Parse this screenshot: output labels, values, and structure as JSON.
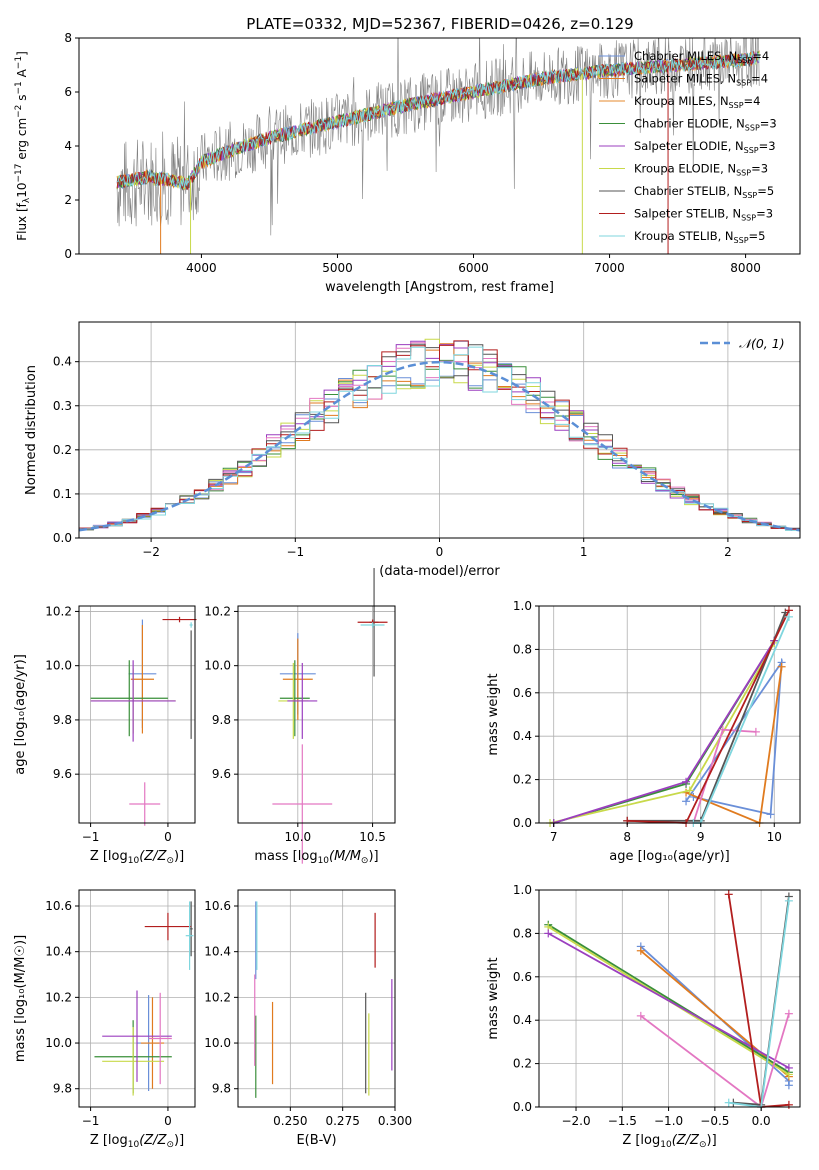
{
  "title": "PLATE=0332, MJD=52367, FIBERID=0426, z=0.129",
  "colors": {
    "chabrier_miles": "#6a8fd8",
    "salpeter_miles": "#e07b1f",
    "kroupa_miles": "#e58a2d",
    "chabrier_elodie": "#3a8f3a",
    "salpeter_elodie": "#9b3fbf",
    "kroupa_elodie": "#c8d94a",
    "chabrier_stelib": "#555555",
    "salpeter_stelib": "#b21e1e",
    "kroupa_stelib": "#7fd6de",
    "pink": "#e377c2",
    "data": "#808080",
    "normal_curve": "#5b8fd6"
  },
  "chart_data": [
    {
      "type": "line",
      "name": "spectrum",
      "xlabel": "wavelength [Angstrom, rest frame]",
      "ylabel_parts": {
        "a": "Flux [f",
        "b": "λ",
        "c": "10",
        "d": "−17",
        "e": " erg cm",
        "f": "−2",
        "g": " s",
        "h": "−1",
        "i": " A",
        "j": "−1",
        "k": "]"
      },
      "xlim": [
        3100,
        8400
      ],
      "ylim": [
        0,
        8
      ],
      "xticks": [
        4000,
        5000,
        6000,
        7000,
        8000
      ],
      "yticks": [
        0,
        2,
        4,
        6,
        8
      ],
      "legend_position": "right",
      "legend": [
        {
          "main": "Chabrier MILES, N",
          "sub": "SSP",
          "tail": "=4",
          "color_key": "chabrier_miles"
        },
        {
          "main": "Salpeter MILES, N",
          "sub": "SSP",
          "tail": "=4",
          "color_key": "salpeter_miles"
        },
        {
          "main": "Kroupa MILES, N",
          "sub": "SSP",
          "tail": "=4",
          "color_key": "kroupa_miles"
        },
        {
          "main": "Chabrier ELODIE, N",
          "sub": "SSP",
          "tail": "=3",
          "color_key": "chabrier_elodie"
        },
        {
          "main": "Salpeter ELODIE, N",
          "sub": "SSP",
          "tail": "=3",
          "color_key": "salpeter_elodie"
        },
        {
          "main": "Kroupa ELODIE, N",
          "sub": "SSP",
          "tail": "=3",
          "color_key": "kroupa_elodie"
        },
        {
          "main": "Chabrier STELIB, N",
          "sub": "SSP",
          "tail": "=5",
          "color_key": "chabrier_stelib"
        },
        {
          "main": "Salpeter STELIB, N",
          "sub": "SSP",
          "tail": "=3",
          "color_key": "salpeter_stelib"
        },
        {
          "main": "Kroupa STELIB, N",
          "sub": "SSP",
          "tail": "=5",
          "color_key": "kroupa_stelib"
        }
      ],
      "continuum": {
        "x": [
          3380,
          3500,
          3700,
          3900,
          4000,
          4200,
          4500,
          5000,
          5500,
          6000,
          6500,
          7000,
          7500,
          8000,
          8100
        ],
        "y": [
          2.5,
          2.6,
          2.8,
          2.6,
          3.4,
          3.8,
          4.3,
          4.9,
          5.5,
          6.0,
          6.5,
          6.8,
          7.0,
          7.2,
          7.3
        ]
      }
    },
    {
      "type": "bar",
      "name": "residual_histogram",
      "xlabel": "(data-model)/error",
      "ylabel": "Normed distribution",
      "xlim": [
        -2.5,
        2.5
      ],
      "ylim": [
        0,
        0.49
      ],
      "xticks": [
        -2,
        -1,
        0,
        1,
        2
      ],
      "yticks": [
        0.0,
        0.1,
        0.2,
        0.3,
        0.4
      ],
      "ytick_labels": [
        "0.0",
        "0.1",
        "0.2",
        "0.3",
        "0.4"
      ],
      "xtick_labels": [
        "−2",
        "−1",
        "0",
        "1",
        "2"
      ],
      "legend_label": "𝒩(0, 1)",
      "legend_position": "top-right",
      "bin_width": 0.1
    },
    {
      "type": "scatter",
      "name": "age_vs_Z",
      "xlabel_main": "Z [log",
      "xlabel_sub": "10",
      "xlabel_rest": "(Z/Z",
      "xlabel_sun": "⊙",
      "xlabel_end": ")]",
      "ylabel": "age  [log₁₀(age/yr)]",
      "xlim": [
        -1.15,
        0.35
      ],
      "ylim": [
        9.42,
        10.22
      ],
      "xticks": [
        -1,
        0
      ],
      "xtick_labels": [
        "−1",
        "0"
      ],
      "yticks": [
        9.6,
        9.8,
        10.0,
        10.2
      ],
      "ytick_labels": [
        "9.6",
        "9.8",
        "10.0",
        "10.2"
      ],
      "points": [
        {
          "x": -0.33,
          "y": 9.97,
          "xerr": 0.18,
          "yerr": 0.2,
          "c": "chabrier_miles"
        },
        {
          "x": -0.33,
          "y": 9.95,
          "xerr": 0.15,
          "yerr": 0.2,
          "c": "salpeter_miles"
        },
        {
          "x": -0.5,
          "y": 9.88,
          "xerr": 0.5,
          "yerr": 0.14,
          "c": "chabrier_elodie"
        },
        {
          "x": -0.45,
          "y": 9.87,
          "xerr": 0.55,
          "yerr": 0.12,
          "c": "kroupa_elodie"
        },
        {
          "x": -0.45,
          "y": 9.87,
          "xerr": 0.55,
          "yerr": 0.15,
          "c": "salpeter_elodie"
        },
        {
          "x": -0.3,
          "y": 9.49,
          "xerr": 0.2,
          "yerr": 0.08,
          "c": "pink"
        },
        {
          "x": 0.3,
          "y": 9.93,
          "xerr": 0.0,
          "yerr": 0.2,
          "c": "chabrier_stelib"
        },
        {
          "x": 0.15,
          "y": 10.17,
          "xerr": 0.22,
          "yerr": 0.01,
          "c": "salpeter_stelib"
        },
        {
          "x": 0.3,
          "y": 10.15,
          "xerr": 0.02,
          "yerr": 0.01,
          "c": "kroupa_stelib"
        }
      ]
    },
    {
      "type": "scatter",
      "name": "age_vs_mass",
      "xlabel_main": "mass [log",
      "xlabel_sub": "10",
      "xlabel_rest": "(M/M",
      "xlabel_sun": "⊙",
      "xlabel_end": ")]",
      "xlim": [
        9.6,
        10.65
      ],
      "ylim": [
        9.42,
        10.22
      ],
      "xticks": [
        10.0,
        10.5
      ],
      "xtick_labels": [
        "10.0",
        "10.5"
      ],
      "yticks": [
        9.6,
        9.8,
        10.0,
        10.2
      ],
      "ytick_labels": [
        "9.6",
        "9.8",
        "10.0",
        "10.2"
      ],
      "points": [
        {
          "x": 10.0,
          "y": 9.97,
          "xerr": 0.12,
          "yerr": 0.15,
          "c": "chabrier_miles"
        },
        {
          "x": 10.0,
          "y": 9.95,
          "xerr": 0.1,
          "yerr": 0.15,
          "c": "salpeter_miles"
        },
        {
          "x": 9.98,
          "y": 9.88,
          "xerr": 0.1,
          "yerr": 0.14,
          "c": "chabrier_elodie"
        },
        {
          "x": 9.97,
          "y": 9.87,
          "xerr": 0.1,
          "yerr": 0.14,
          "c": "kroupa_elodie"
        },
        {
          "x": 10.03,
          "y": 9.87,
          "xerr": 0.1,
          "yerr": 0.14,
          "c": "salpeter_elodie"
        },
        {
          "x": 10.03,
          "y": 9.49,
          "xerr": 0.2,
          "yerr": 0.22,
          "c": "pink"
        },
        {
          "x": 10.51,
          "y": 10.16,
          "xerr": 0.03,
          "yerr": 0.2,
          "c": "chabrier_stelib"
        },
        {
          "x": 10.5,
          "y": 10.16,
          "xerr": 0.1,
          "yerr": 0.01,
          "c": "salpeter_stelib"
        },
        {
          "x": 10.5,
          "y": 10.15,
          "xerr": 0.08,
          "yerr": 0.01,
          "c": "kroupa_stelib"
        }
      ]
    },
    {
      "type": "line",
      "name": "mass_weight_vs_age",
      "xlabel": "age  [log₁₀(age/yr)]",
      "ylabel": "mass weight",
      "xlim": [
        6.8,
        10.35
      ],
      "ylim": [
        0,
        1
      ],
      "xticks": [
        7,
        8,
        9,
        10
      ],
      "xtick_labels": [
        "7",
        "8",
        "9",
        "10"
      ],
      "yticks": [
        0.0,
        0.2,
        0.4,
        0.6,
        0.8,
        1.0
      ],
      "ytick_labels": [
        "0.0",
        "0.2",
        "0.4",
        "0.6",
        "0.8",
        "1.0"
      ],
      "series": [
        {
          "c": "chabrier_miles",
          "x": [
            8.9,
            9.95,
            10.1,
            8.8
          ],
          "y": [
            0.12,
            0.04,
            0.74,
            0.1
          ]
        },
        {
          "c": "salpeter_miles",
          "x": [
            8.8,
            9.8,
            10.1
          ],
          "y": [
            0.14,
            0.0,
            0.72
          ]
        },
        {
          "c": "chabrier_elodie",
          "x": [
            7.0,
            8.8,
            10.0
          ],
          "y": [
            0.0,
            0.18,
            0.84
          ]
        },
        {
          "c": "kroupa_elodie",
          "x": [
            6.95,
            8.85,
            10.0
          ],
          "y": [
            0.0,
            0.15,
            0.83
          ]
        },
        {
          "c": "salpeter_elodie",
          "x": [
            7.0,
            8.8,
            10.0
          ],
          "y": [
            0.0,
            0.19,
            0.84
          ]
        },
        {
          "c": "pink",
          "x": [
            8.9,
            9.3,
            9.75
          ],
          "y": [
            0.0,
            0.43,
            0.42
          ]
        },
        {
          "c": "chabrier_stelib",
          "x": [
            8.0,
            9.0,
            10.15
          ],
          "y": [
            0.01,
            0.01,
            0.97
          ]
        },
        {
          "c": "salpeter_stelib",
          "x": [
            8.0,
            8.8,
            10.2
          ],
          "y": [
            0.01,
            0.0,
            0.98
          ]
        },
        {
          "c": "kroupa_stelib",
          "x": [
            8.9,
            9.0,
            10.2
          ],
          "y": [
            0.0,
            0.0,
            0.95
          ]
        }
      ]
    },
    {
      "type": "scatter",
      "name": "mass_vs_Z",
      "xlabel_main": "Z [log",
      "xlabel_sub": "10",
      "xlabel_rest": "(Z/Z",
      "xlabel_sun": "⊙",
      "xlabel_end": ")]",
      "ylabel": "mass [log₁₀(M/M☉)]",
      "xlim": [
        -1.15,
        0.35
      ],
      "ylim": [
        9.72,
        10.67
      ],
      "xticks": [
        -1,
        0
      ],
      "xtick_labels": [
        "−1",
        "0"
      ],
      "yticks": [
        9.8,
        10.0,
        10.2,
        10.4,
        10.6
      ],
      "ytick_labels": [
        "9.8",
        "10.0",
        "10.2",
        "10.4",
        "10.6"
      ],
      "points": [
        {
          "x": -0.25,
          "y": 10.0,
          "xerr": 0.15,
          "yerr": 0.21,
          "c": "chabrier_miles"
        },
        {
          "x": -0.2,
          "y": 10.0,
          "xerr": 0.15,
          "yerr": 0.2,
          "c": "salpeter_miles"
        },
        {
          "x": -0.45,
          "y": 9.94,
          "xerr": 0.5,
          "yerr": 0.16,
          "c": "chabrier_elodie"
        },
        {
          "x": -0.45,
          "y": 9.92,
          "xerr": 0.4,
          "yerr": 0.15,
          "c": "kroupa_elodie"
        },
        {
          "x": -0.4,
          "y": 10.03,
          "xerr": 0.45,
          "yerr": 0.2,
          "c": "salpeter_elodie"
        },
        {
          "x": -0.1,
          "y": 10.02,
          "xerr": 0.15,
          "yerr": 0.2,
          "c": "pink"
        },
        {
          "x": 0.3,
          "y": 10.5,
          "xerr": 0.02,
          "yerr": 0.12,
          "c": "chabrier_stelib"
        },
        {
          "x": 0.0,
          "y": 10.51,
          "xerr": 0.3,
          "yerr": 0.06,
          "c": "salpeter_stelib"
        },
        {
          "x": 0.28,
          "y": 10.47,
          "xerr": 0.05,
          "yerr": 0.15,
          "c": "kroupa_stelib"
        }
      ]
    },
    {
      "type": "scatter",
      "name": "mass_vs_ebv",
      "xlabel": "E(B-V)",
      "xlim": [
        0.225,
        0.3
      ],
      "ylim": [
        9.72,
        10.67
      ],
      "xticks": [
        0.25,
        0.275,
        0.3
      ],
      "xtick_labels": [
        "0.250",
        "0.275",
        "0.300"
      ],
      "yticks": [
        9.8,
        10.0,
        10.2,
        10.4,
        10.6
      ],
      "ytick_labels": [
        "9.8",
        "10.0",
        "10.2",
        "10.4",
        "10.6"
      ],
      "points": [
        {
          "x": 0.2335,
          "y": 10.45,
          "yerr": 0.17,
          "c": "chabrier_miles"
        },
        {
          "x": 0.2415,
          "y": 10.0,
          "yerr": 0.18,
          "c": "salpeter_miles"
        },
        {
          "x": 0.2335,
          "y": 9.94,
          "yerr": 0.18,
          "c": "chabrier_elodie"
        },
        {
          "x": 0.2875,
          "y": 9.95,
          "yerr": 0.18,
          "c": "kroupa_elodie"
        },
        {
          "x": 0.2985,
          "y": 10.08,
          "yerr": 0.2,
          "c": "salpeter_elodie"
        },
        {
          "x": 0.233,
          "y": 10.1,
          "yerr": 0.2,
          "c": "pink"
        },
        {
          "x": 0.286,
          "y": 10.0,
          "yerr": 0.22,
          "c": "chabrier_stelib"
        },
        {
          "x": 0.2905,
          "y": 10.45,
          "yerr": 0.12,
          "c": "salpeter_stelib"
        },
        {
          "x": 0.234,
          "y": 10.47,
          "yerr": 0.15,
          "c": "kroupa_stelib"
        }
      ]
    },
    {
      "type": "line",
      "name": "mass_weight_vs_Z",
      "xlabel_main": "Z [log",
      "xlabel_sub": "10",
      "xlabel_rest": "(Z/Z",
      "xlabel_sun": "⊙",
      "xlabel_end": ")]",
      "ylabel": "mass weight",
      "xlim": [
        -2.4,
        0.42
      ],
      "ylim": [
        0,
        1
      ],
      "xticks": [
        -2.0,
        -1.5,
        -1.0,
        -0.5,
        0.0
      ],
      "xtick_labels": [
        "−2.0",
        "−1.5",
        "−1.0",
        "−0.5",
        "0.0"
      ],
      "yticks": [
        0.0,
        0.2,
        0.4,
        0.6,
        0.8,
        1.0
      ],
      "ytick_labels": [
        "0.0",
        "0.2",
        "0.4",
        "0.6",
        "0.8",
        "1.0"
      ],
      "series": [
        {
          "c": "chabrier_miles",
          "x": [
            -1.3,
            0.3,
            0.3
          ],
          "y": [
            0.74,
            0.12,
            0.1
          ]
        },
        {
          "c": "salpeter_miles",
          "x": [
            -1.3,
            0.3
          ],
          "y": [
            0.72,
            0.14
          ]
        },
        {
          "c": "chabrier_elodie",
          "x": [
            -2.3,
            0.3
          ],
          "y": [
            0.84,
            0.16
          ]
        },
        {
          "c": "kroupa_elodie",
          "x": [
            -2.3,
            0.3
          ],
          "y": [
            0.83,
            0.15
          ]
        },
        {
          "c": "salpeter_elodie",
          "x": [
            -2.3,
            0.3
          ],
          "y": [
            0.8,
            0.18
          ]
        },
        {
          "c": "pink",
          "x": [
            -1.3,
            0.0,
            0.3
          ],
          "y": [
            0.42,
            0.0,
            0.43
          ]
        },
        {
          "c": "chabrier_stelib",
          "x": [
            -0.3,
            0.0,
            0.3
          ],
          "y": [
            0.02,
            0.01,
            0.97
          ]
        },
        {
          "c": "salpeter_stelib",
          "x": [
            -0.35,
            0.0,
            0.3
          ],
          "y": [
            0.98,
            0.0,
            0.01
          ]
        },
        {
          "c": "kroupa_stelib",
          "x": [
            -0.35,
            0.0,
            0.3
          ],
          "y": [
            0.02,
            0.0,
            0.95
          ]
        }
      ]
    }
  ]
}
